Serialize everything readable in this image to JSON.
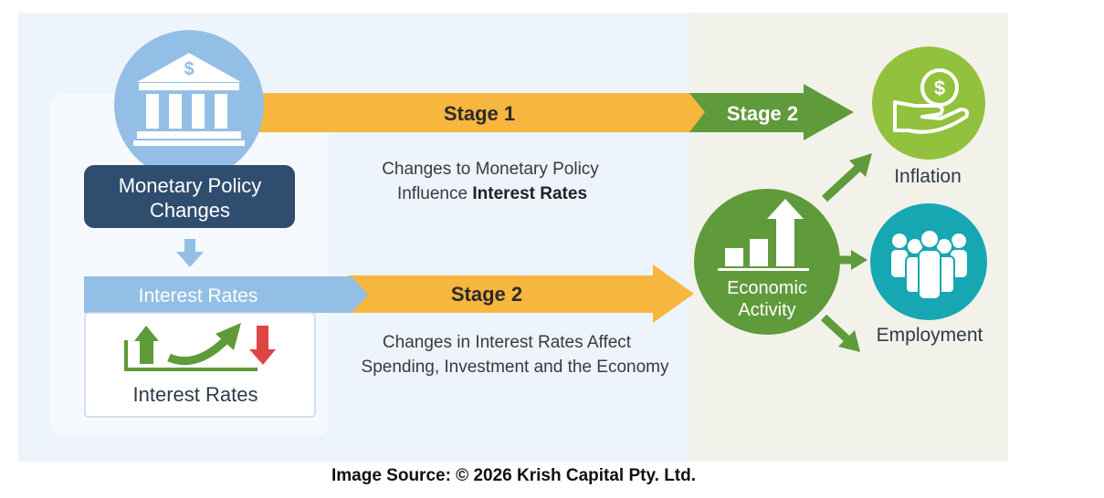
{
  "stage1": {
    "arrow_label": "Stage 1",
    "stage2_label": "Stage 2",
    "description_line1": "Changes to Monetary Policy",
    "description_line2_prefix": "Influence ",
    "description_line2_bold": "Interest Rates"
  },
  "policy_box": {
    "line1": "Monetary Policy",
    "line2": "Changes",
    "bank_symbol": "$"
  },
  "interest_panel": {
    "header": "Interest Rates",
    "footer": "Interest Rates"
  },
  "stage2": {
    "arrow_label": "Stage 2",
    "description_line1": "Changes in Interest Rates Affect",
    "description_line2": "Spending, Investment and the Economy"
  },
  "economic": {
    "line1": "Economic",
    "line2": "Activity"
  },
  "inflation": {
    "label": "Inflation",
    "symbol": "$"
  },
  "employment": {
    "label": "Employment"
  },
  "source": "Image Source: © 2026 Krish Capital Pty. Ltd.",
  "colors": {
    "left_bg": "#eef4fb",
    "right_bg": "#f2f2ea",
    "orange": "#f7b63d",
    "green": "#5f9a3b",
    "navy": "#2f4d6e",
    "light_blue": "#93bfe6",
    "lime": "#92c13d",
    "teal": "#16a7b3",
    "red": "#e04545"
  }
}
